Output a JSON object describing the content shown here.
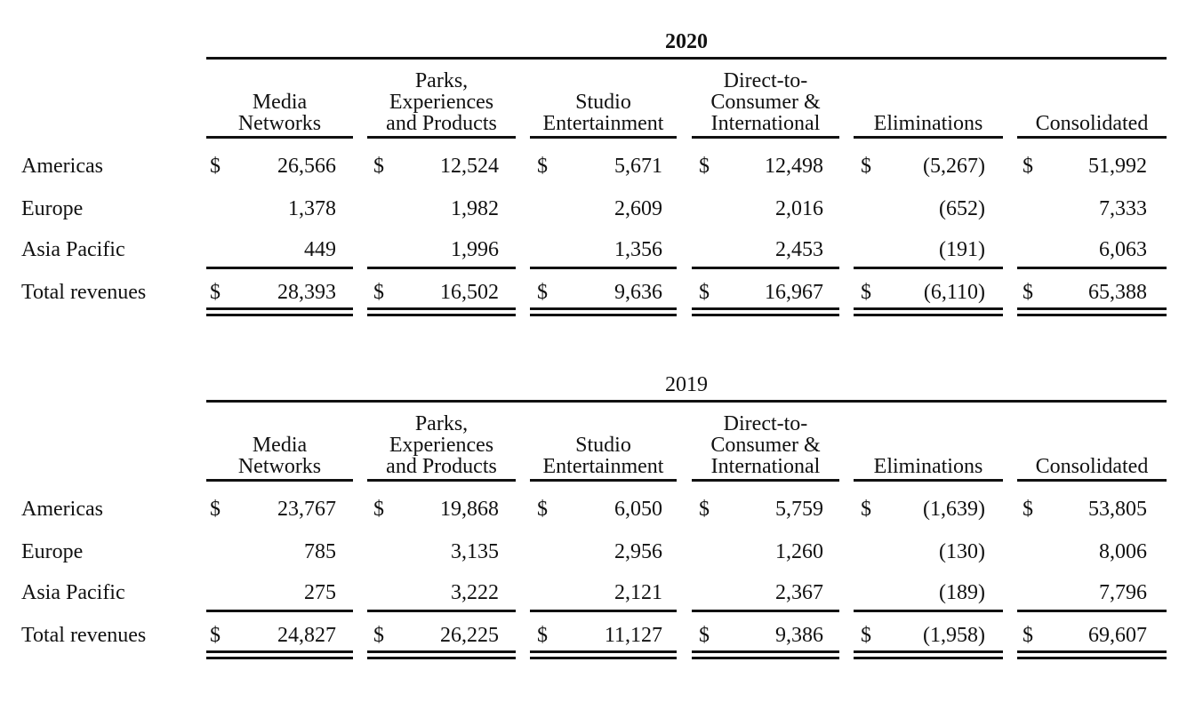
{
  "columns": [
    "Media\nNetworks",
    "Parks,\nExperiences\nand Products",
    "Studio\nEntertainment",
    "Direct-to-\nConsumer &\nInternational",
    "Eliminations",
    "Consolidated"
  ],
  "currency_symbol": "$",
  "tables": [
    {
      "year": "2020",
      "rows": [
        {
          "label": "Americas",
          "values": [
            "26,566",
            "12,524",
            "5,671",
            "12,498",
            "(5,267)",
            "51,992"
          ]
        },
        {
          "label": "Europe",
          "values": [
            "1,378",
            "1,982",
            "2,609",
            "2,016",
            "(652)",
            "7,333"
          ]
        },
        {
          "label": "Asia Pacific",
          "values": [
            "449",
            "1,996",
            "1,356",
            "2,453",
            "(191)",
            "6,063"
          ]
        },
        {
          "label": "Total revenues",
          "values": [
            "28,393",
            "16,502",
            "9,636",
            "16,967",
            "(6,110)",
            "65,388"
          ]
        }
      ]
    },
    {
      "year": "2019",
      "rows": [
        {
          "label": "Americas",
          "values": [
            "23,767",
            "19,868",
            "6,050",
            "5,759",
            "(1,639)",
            "53,805"
          ]
        },
        {
          "label": "Europe",
          "values": [
            "785",
            "3,135",
            "2,956",
            "1,260",
            "(130)",
            "8,006"
          ]
        },
        {
          "label": "Asia Pacific",
          "values": [
            "275",
            "3,222",
            "2,121",
            "2,367",
            "(189)",
            "7,796"
          ]
        },
        {
          "label": "Total revenues",
          "values": [
            "24,827",
            "26,225",
            "11,127",
            "9,386",
            "(1,958)",
            "69,607"
          ]
        }
      ]
    }
  ]
}
